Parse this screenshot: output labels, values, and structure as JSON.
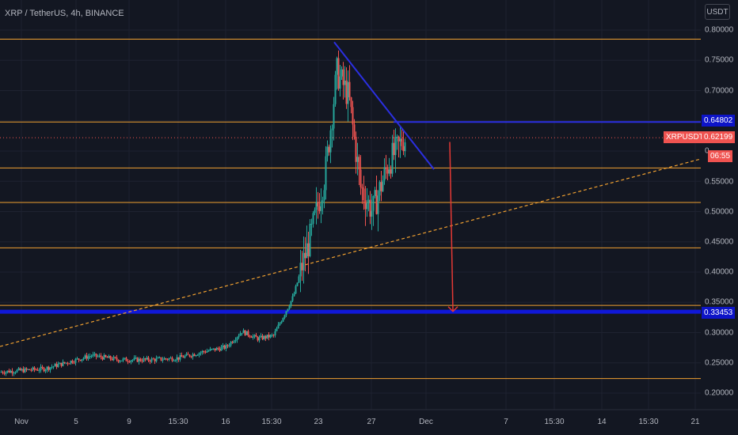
{
  "header": {
    "title": "XRP / TetherUS, 4h, BINANCE",
    "currency": "USDT"
  },
  "price_tags": {
    "resistance": "0.64802",
    "symbol": "XRPUSDT",
    "last_price": "0.62199",
    "countdown": "06:55",
    "support": "0.33453"
  },
  "y_axis_labels": [
    "0.80000",
    "0.75000",
    "0.70000",
    "0.55000",
    "0.50000",
    "0.45000",
    "0.40000",
    "0.35000",
    "0.30000",
    "0.25000",
    "0.20000"
  ],
  "x_axis_labels": [
    "Nov",
    "5",
    "9",
    "15:30",
    "16",
    "15:30",
    "23",
    "27",
    "Dec",
    "7",
    "15:30",
    "14",
    "15:30",
    "21"
  ],
  "y_partial_label": "0.",
  "colors": {
    "background": "#131722",
    "bull": "#26a69a",
    "bear": "#ef5350",
    "horizontal_level": "#f0a030",
    "trendline": "#2b2fe0",
    "support_band": "#1018d8",
    "projection_arrow": "#e53935",
    "dashed_trend": "#f0a030"
  },
  "chart_data": {
    "type": "candlestick",
    "title": "XRP / TetherUS, 4h, BINANCE",
    "y_unit": "USDT",
    "ylim": [
      0.18,
      0.82
    ],
    "grid": true,
    "price_path": [
      {
        "t": "Nov 1",
        "price": 0.235
      },
      {
        "t": "Nov 3",
        "price": 0.24
      },
      {
        "t": "Nov 5",
        "price": 0.262
      },
      {
        "t": "Nov 7",
        "price": 0.255
      },
      {
        "t": "Nov 9",
        "price": 0.255
      },
      {
        "t": "Nov 12",
        "price": 0.258
      },
      {
        "t": "Nov 14",
        "price": 0.268
      },
      {
        "t": "Nov 16",
        "price": 0.276
      },
      {
        "t": "Nov 18",
        "price": 0.302
      },
      {
        "t": "Nov 19",
        "price": 0.29
      },
      {
        "t": "Nov 20",
        "price": 0.295
      },
      {
        "t": "Nov 21",
        "price": 0.36
      },
      {
        "t": "Nov 22",
        "price": 0.46
      },
      {
        "t": "Nov 23",
        "price": 0.56
      },
      {
        "t": "Nov 24",
        "price": 0.73
      },
      {
        "t": "Nov 25",
        "price": 0.69
      },
      {
        "t": "Nov 26",
        "price": 0.54
      },
      {
        "t": "Nov 27",
        "price": 0.5
      },
      {
        "t": "Nov 28",
        "price": 0.58
      },
      {
        "t": "Nov 29",
        "price": 0.622
      }
    ],
    "horizontal_levels": [
      0.785,
      0.648,
      0.572,
      0.515,
      0.44,
      0.345,
      0.224
    ],
    "support_level": 0.33453,
    "resistance_level": 0.64802,
    "last_price": 0.62199,
    "descending_trendline": {
      "start_price": 0.78,
      "end_price": 0.57
    },
    "ascending_dashed_trendline": {
      "start_price": 0.277,
      "end_price": 0.587
    },
    "projection_arrow": {
      "from_price": 0.615,
      "to_price": 0.335
    }
  }
}
